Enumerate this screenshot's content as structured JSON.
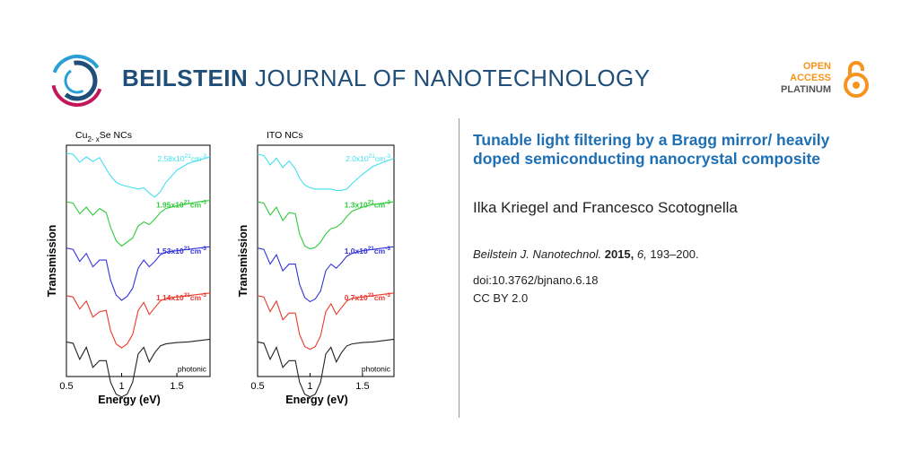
{
  "header": {
    "brand_bold": "BEILSTEIN",
    "brand_rest": "JOURNAL OF NANOTECHNOLOGY",
    "oa_line1": "OPEN",
    "oa_line2": "ACCESS",
    "oa_line3": "PLATINUM"
  },
  "article": {
    "title": "Tunable light filtering by a Bragg mirror/ heavily doped semiconducting nanocrystal composite",
    "authors": "Ilka Kriegel and Francesco Scotognella",
    "journal": "Beilstein J. Nanotechnol.",
    "year": "2015,",
    "volume": "6,",
    "pages": "193–200.",
    "doi": "doi:10.3762/bjnano.6.18",
    "license": "CC BY 2.0"
  },
  "colors": {
    "brand": "#1f4e79",
    "title": "#1f6fb5",
    "oa_orange": "#f7941d",
    "cyan": "#3ee0ee",
    "green": "#2ecc3a",
    "blue": "#3434d8",
    "red": "#e8392d",
    "black": "#222222"
  },
  "chart_data": [
    {
      "type": "line",
      "title": "Cu2-xSe NCs",
      "title_base": "Cu",
      "title_sub": "2- x",
      "title_rest": "Se NCs",
      "xlabel": "Energy (eV)",
      "ylabel": "Transmission",
      "xlim": [
        0.5,
        1.8
      ],
      "xticks": [
        "0.5",
        "1",
        "1.5"
      ],
      "xtick_values": [
        0.5,
        1.0,
        1.5
      ],
      "series": [
        {
          "name": "2.58x10^21 cm^-3",
          "label_base": "2.58x10",
          "label_exp": "21",
          "label_unit": "cm",
          "label_unit_exp": "-3",
          "color": "cyan",
          "x": [
            0.5,
            0.56,
            0.62,
            0.68,
            0.74,
            0.8,
            0.86,
            0.9,
            0.95,
            1.0,
            1.05,
            1.1,
            1.15,
            1.2,
            1.25,
            1.3,
            1.35,
            1.4,
            1.5,
            1.6,
            1.7,
            1.8
          ],
          "y": [
            0.93,
            0.92,
            0.8,
            0.88,
            0.81,
            0.87,
            0.7,
            0.6,
            0.5,
            0.46,
            0.44,
            0.42,
            0.4,
            0.42,
            0.34,
            0.28,
            0.36,
            0.5,
            0.68,
            0.78,
            0.83,
            0.88
          ]
        },
        {
          "name": "1.95x10^21 cm^-3",
          "label_base": "1.95x10",
          "label_exp": "21",
          "label_unit": "cm",
          "label_unit_exp": "-3",
          "color": "green",
          "x": [
            0.5,
            0.56,
            0.62,
            0.68,
            0.74,
            0.8,
            0.86,
            0.9,
            0.95,
            1.0,
            1.05,
            1.1,
            1.15,
            1.2,
            1.25,
            1.3,
            1.35,
            1.4,
            1.5,
            1.6,
            1.7,
            1.8
          ],
          "y": [
            0.9,
            0.88,
            0.72,
            0.82,
            0.7,
            0.8,
            0.74,
            0.52,
            0.32,
            0.24,
            0.3,
            0.36,
            0.54,
            0.6,
            0.56,
            0.64,
            0.74,
            0.8,
            0.84,
            0.87,
            0.9,
            0.92
          ]
        },
        {
          "name": "1.53x10^21 cm^-3",
          "label_base": "1.53x10",
          "label_exp": "21",
          "label_unit": "cm",
          "label_unit_exp": "-3",
          "color": "blue",
          "x": [
            0.5,
            0.56,
            0.62,
            0.68,
            0.74,
            0.8,
            0.86,
            0.9,
            0.95,
            1.0,
            1.05,
            1.1,
            1.15,
            1.2,
            1.25,
            1.3,
            1.35,
            1.4,
            1.5,
            1.6,
            1.7,
            1.8
          ],
          "y": [
            0.9,
            0.88,
            0.7,
            0.82,
            0.62,
            0.72,
            0.72,
            0.42,
            0.2,
            0.12,
            0.18,
            0.3,
            0.6,
            0.72,
            0.62,
            0.7,
            0.8,
            0.84,
            0.86,
            0.88,
            0.9,
            0.92
          ]
        },
        {
          "name": "1.14x10^21 cm^-3",
          "label_base": "1.14x10",
          "label_exp": "21",
          "label_unit": "cm",
          "label_unit_exp": "-3",
          "color": "red",
          "x": [
            0.5,
            0.56,
            0.62,
            0.68,
            0.74,
            0.8,
            0.86,
            0.9,
            0.95,
            1.0,
            1.05,
            1.1,
            1.15,
            1.2,
            1.25,
            1.3,
            1.35,
            1.4,
            1.5,
            1.6,
            1.7,
            1.8
          ],
          "y": [
            0.88,
            0.86,
            0.68,
            0.8,
            0.56,
            0.64,
            0.66,
            0.36,
            0.16,
            0.1,
            0.16,
            0.3,
            0.66,
            0.78,
            0.6,
            0.7,
            0.8,
            0.84,
            0.86,
            0.88,
            0.9,
            0.92
          ]
        },
        {
          "name": "photonic",
          "label_base": "photonic",
          "color": "black",
          "x": [
            0.5,
            0.56,
            0.62,
            0.68,
            0.74,
            0.8,
            0.86,
            0.9,
            0.95,
            1.0,
            1.05,
            1.1,
            1.15,
            1.2,
            1.25,
            1.3,
            1.35,
            1.4,
            1.5,
            1.6,
            1.7,
            1.8
          ],
          "y": [
            0.88,
            0.86,
            0.62,
            0.8,
            0.5,
            0.6,
            0.6,
            0.28,
            0.1,
            0.06,
            0.1,
            0.28,
            0.7,
            0.8,
            0.58,
            0.72,
            0.82,
            0.85,
            0.87,
            0.88,
            0.9,
            0.92
          ]
        }
      ]
    },
    {
      "type": "line",
      "title": "ITO NCs",
      "xlabel": "Energy (eV)",
      "ylabel": "Transmission",
      "xlim": [
        0.5,
        1.8
      ],
      "xticks": [
        "0.5",
        "1",
        "1.5"
      ],
      "xtick_values": [
        0.5,
        1.0,
        1.5
      ],
      "series": [
        {
          "name": "2.0x10^21 cm^-3",
          "label_base": "2.0x10",
          "label_exp": "21",
          "label_unit": "cm",
          "label_unit_exp": "-3",
          "color": "cyan",
          "x": [
            0.5,
            0.56,
            0.62,
            0.68,
            0.74,
            0.8,
            0.86,
            0.9,
            0.95,
            1.0,
            1.05,
            1.1,
            1.15,
            1.2,
            1.25,
            1.3,
            1.35,
            1.4,
            1.5,
            1.6,
            1.7,
            1.8
          ],
          "y": [
            0.92,
            0.9,
            0.76,
            0.86,
            0.72,
            0.82,
            0.7,
            0.56,
            0.46,
            0.42,
            0.4,
            0.4,
            0.4,
            0.4,
            0.38,
            0.38,
            0.4,
            0.48,
            0.62,
            0.74,
            0.8,
            0.86
          ]
        },
        {
          "name": "1.3x10^21 cm^-3",
          "label_base": "1.3x10",
          "label_exp": "21",
          "label_unit": "cm",
          "label_unit_exp": "-3",
          "color": "green",
          "x": [
            0.5,
            0.56,
            0.62,
            0.68,
            0.74,
            0.8,
            0.86,
            0.9,
            0.95,
            1.0,
            1.05,
            1.1,
            1.15,
            1.2,
            1.25,
            1.3,
            1.35,
            1.4,
            1.5,
            1.6,
            1.7,
            1.8
          ],
          "y": [
            0.9,
            0.88,
            0.7,
            0.82,
            0.62,
            0.74,
            0.72,
            0.42,
            0.24,
            0.2,
            0.22,
            0.3,
            0.42,
            0.5,
            0.52,
            0.58,
            0.68,
            0.76,
            0.82,
            0.86,
            0.88,
            0.9
          ]
        },
        {
          "name": "1.0x10^21 cm^-3",
          "label_base": "1.0x10",
          "label_exp": "21",
          "label_unit": "cm",
          "label_unit_exp": "-3",
          "color": "blue",
          "x": [
            0.5,
            0.56,
            0.62,
            0.68,
            0.74,
            0.8,
            0.86,
            0.9,
            0.95,
            1.0,
            1.05,
            1.1,
            1.15,
            1.2,
            1.25,
            1.3,
            1.35,
            1.4,
            1.5,
            1.6,
            1.7,
            1.8
          ],
          "y": [
            0.9,
            0.88,
            0.66,
            0.8,
            0.56,
            0.66,
            0.66,
            0.36,
            0.16,
            0.1,
            0.14,
            0.26,
            0.56,
            0.66,
            0.6,
            0.68,
            0.78,
            0.82,
            0.86,
            0.88,
            0.9,
            0.92
          ]
        },
        {
          "name": "0.7x10^21 cm^-3",
          "label_base": "0.7x10",
          "label_exp": "21",
          "label_unit": "cm",
          "label_unit_exp": "-3",
          "color": "red",
          "x": [
            0.5,
            0.56,
            0.62,
            0.68,
            0.74,
            0.8,
            0.86,
            0.9,
            0.95,
            1.0,
            1.05,
            1.1,
            1.15,
            1.2,
            1.25,
            1.3,
            1.35,
            1.4,
            1.5,
            1.6,
            1.7,
            1.8
          ],
          "y": [
            0.88,
            0.86,
            0.64,
            0.8,
            0.52,
            0.62,
            0.62,
            0.3,
            0.12,
            0.08,
            0.12,
            0.28,
            0.64,
            0.76,
            0.6,
            0.7,
            0.8,
            0.84,
            0.86,
            0.88,
            0.9,
            0.92
          ]
        },
        {
          "name": "photonic",
          "label_base": "photonic",
          "color": "black",
          "x": [
            0.5,
            0.56,
            0.62,
            0.68,
            0.74,
            0.8,
            0.86,
            0.9,
            0.95,
            1.0,
            1.05,
            1.1,
            1.15,
            1.2,
            1.25,
            1.3,
            1.35,
            1.4,
            1.5,
            1.6,
            1.7,
            1.8
          ],
          "y": [
            0.88,
            0.86,
            0.62,
            0.8,
            0.5,
            0.6,
            0.6,
            0.28,
            0.1,
            0.06,
            0.1,
            0.28,
            0.7,
            0.8,
            0.58,
            0.72,
            0.82,
            0.85,
            0.87,
            0.88,
            0.9,
            0.92
          ]
        }
      ]
    }
  ]
}
